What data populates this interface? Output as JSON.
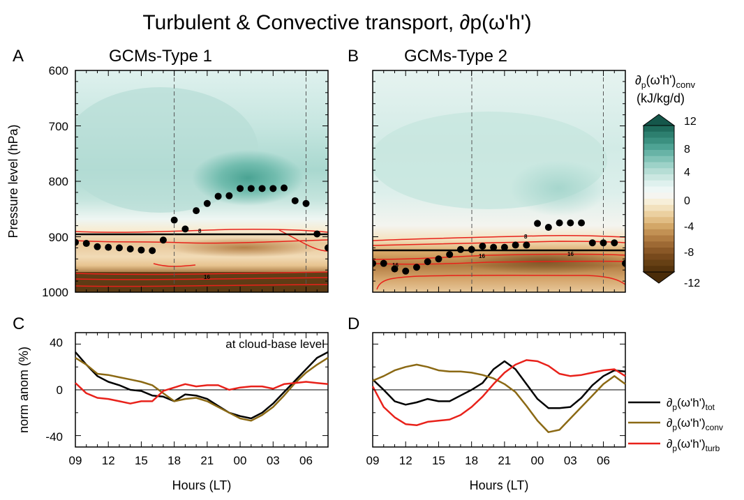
{
  "figure": {
    "title": "Turbulent & Convective transport, ∂p(ω'h')"
  },
  "panels": {
    "A": {
      "letter": "A",
      "title": "GCMs-Type 1"
    },
    "B": {
      "letter": "B",
      "title": "GCMs-Type 2"
    },
    "C": {
      "letter": "C",
      "annotation": "at cloud-base level"
    },
    "D": {
      "letter": "D"
    }
  },
  "axes": {
    "top_ylabel": "Pressure level (hPa)",
    "bottom_ylabel": "norm anom (%)",
    "xlabel": "Hours (LT)",
    "top_yticks": [
      "600",
      "700",
      "800",
      "900",
      "1000"
    ],
    "bottom_yticks": [
      "40",
      "0",
      "-40"
    ],
    "xticks": [
      "09",
      "12",
      "15",
      "18",
      "21",
      "00",
      "03",
      "06"
    ]
  },
  "colorbar": {
    "label_line1": "∂p(ω'h')conv",
    "label_line2": "(kJ/kg/d)",
    "ticks": [
      "12",
      "8",
      "4",
      "0",
      "-4",
      "-8",
      "-12"
    ]
  },
  "legend": [
    {
      "label": "∂p(ω'h')tot",
      "color": "#000000"
    },
    {
      "label": "∂p(ω'h')conv",
      "color": "#8B6914"
    },
    {
      "label": "∂p(ω'h')turb",
      "color": "#E8211A"
    }
  ],
  "chart_data": [
    {
      "panel": "A",
      "type": "heatmap",
      "xlabel": "Hours (LT)",
      "ylabel": "Pressure level (hPa)",
      "ylim": [
        600,
        1000
      ],
      "x_hours": [
        9,
        10,
        11,
        12,
        13,
        14,
        15,
        16,
        17,
        18,
        19,
        20,
        21,
        22,
        23,
        24,
        25,
        26,
        27,
        28,
        29,
        30,
        31,
        32
      ],
      "cloud_base_pressure_hPa": [
        910,
        912,
        918,
        919,
        920,
        922,
        924,
        925,
        906,
        870,
        886,
        853,
        840,
        827,
        826,
        813,
        813,
        813,
        813,
        812,
        835,
        840,
        895,
        920
      ],
      "mixed_layer_top_hPa": 893,
      "contour_labels": [
        "8",
        "16"
      ],
      "positive_max_kJ_kg_d": 8,
      "negative_min_kJ_kg_d": -12
    },
    {
      "panel": "B",
      "type": "heatmap",
      "xlabel": "Hours (LT)",
      "ylabel": "Pressure level (hPa)",
      "ylim": [
        600,
        1000
      ],
      "x_hours": [
        9,
        10,
        11,
        12,
        13,
        14,
        15,
        16,
        17,
        18,
        19,
        20,
        21,
        22,
        23,
        24,
        25,
        26,
        27,
        28,
        29,
        30,
        31,
        32
      ],
      "cloud_base_pressure_hPa": [
        948,
        948,
        958,
        962,
        955,
        945,
        940,
        932,
        923,
        923,
        917,
        919,
        919,
        915,
        915,
        876,
        883,
        875,
        875,
        875,
        911,
        911,
        911,
        948
      ],
      "mixed_layer_top_hPa": 922,
      "contour_labels": [
        "8",
        "16",
        "16",
        "16"
      ],
      "positive_max_kJ_kg_d": 4,
      "negative_min_kJ_kg_d": -10
    },
    {
      "panel": "C",
      "type": "line",
      "xlabel": "Hours (LT)",
      "ylabel": "norm anom (%)",
      "ylim": [
        -50,
        50
      ],
      "x": [
        9,
        10,
        11,
        12,
        13,
        14,
        15,
        16,
        17,
        18,
        19,
        20,
        21,
        22,
        23,
        24,
        25,
        26,
        27,
        28,
        29,
        30,
        31,
        32
      ],
      "series": [
        {
          "name": "∂p(ω'h')tot",
          "values": [
            33,
            22,
            12,
            7,
            4,
            0,
            -1,
            -5,
            -6,
            -10,
            -4,
            -5,
            -8,
            -14,
            -20,
            -23,
            -25,
            -20,
            -12,
            -2,
            8,
            18,
            28,
            33
          ]
        },
        {
          "name": "∂p(ω'h')conv",
          "values": [
            28,
            22,
            14,
            13,
            11,
            9,
            7,
            4,
            -3,
            -10,
            -8,
            -7,
            -10,
            -15,
            -20,
            -25,
            -27,
            -22,
            -15,
            -5,
            6,
            15,
            22,
            28
          ]
        },
        {
          "name": "∂p(ω'h')turb",
          "values": [
            6,
            -3,
            -7,
            -8,
            -10,
            -12,
            -10,
            -10,
            -1,
            2,
            5,
            3,
            4,
            4,
            0,
            2,
            3,
            3,
            1,
            5,
            6,
            7,
            6,
            5
          ]
        }
      ]
    },
    {
      "panel": "D",
      "type": "line",
      "xlabel": "Hours (LT)",
      "ylabel": "norm anom (%)",
      "ylim": [
        -50,
        50
      ],
      "x": [
        9,
        10,
        11,
        12,
        13,
        14,
        15,
        16,
        17,
        18,
        19,
        20,
        21,
        22,
        23,
        24,
        25,
        26,
        27,
        28,
        29,
        30,
        31,
        32
      ],
      "series": [
        {
          "name": "∂p(ω'h')tot",
          "values": [
            9,
            0,
            -10,
            -13,
            -11,
            -8,
            -10,
            -10,
            -5,
            0,
            6,
            18,
            25,
            18,
            5,
            -8,
            -16,
            -16,
            -15,
            -7,
            4,
            12,
            17,
            16
          ]
        },
        {
          "name": "∂p(ω'h')conv",
          "values": [
            8,
            12,
            17,
            20,
            22,
            20,
            17,
            16,
            16,
            15,
            13,
            10,
            5,
            -2,
            -14,
            -27,
            -37,
            -35,
            -25,
            -15,
            -5,
            5,
            12,
            5
          ]
        },
        {
          "name": "∂p(ω'h')turb",
          "values": [
            3,
            -15,
            -24,
            -30,
            -31,
            -28,
            -27,
            -26,
            -22,
            -15,
            -6,
            5,
            15,
            22,
            26,
            25,
            21,
            14,
            12,
            13,
            15,
            17,
            18,
            12
          ]
        }
      ]
    }
  ]
}
